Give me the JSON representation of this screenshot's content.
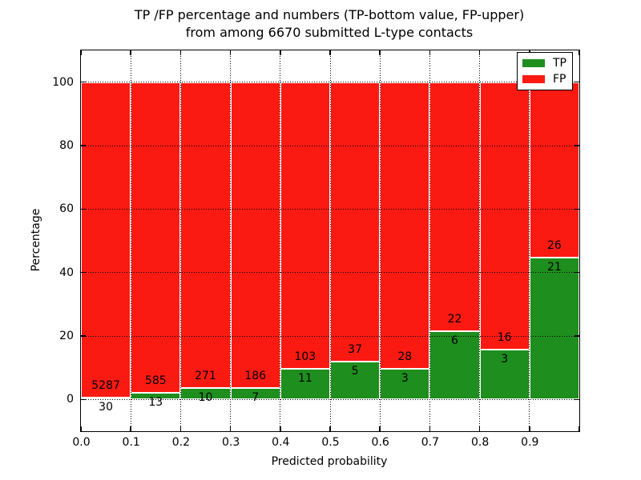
{
  "figure": {
    "title_line1": "TP /FP percentage and numbers (TP-bottom value, FP-upper)",
    "title_line2": "from among 6670 submitted L-type contacts"
  },
  "chart_data": {
    "type": "bar",
    "subtype": "stacked-percentage-histogram",
    "title": "TP /FP percentage and numbers (TP-bottom value, FP-upper) from among 6670 submitted L-type contacts",
    "xlabel": "Predicted probability",
    "ylabel": "Percentage",
    "xlim": [
      0.0,
      1.0
    ],
    "ylim": [
      -10,
      110
    ],
    "grid": "dotted",
    "x_tick_values": [
      0.0,
      0.1,
      0.2,
      0.3,
      0.4,
      0.5,
      0.6,
      0.7,
      0.8,
      0.9,
      1.0
    ],
    "x_tick_labels": [
      "0.0",
      "0.1",
      "0.2",
      "0.3",
      "0.4",
      "0.5",
      "0.6",
      "0.7",
      "0.8",
      "0.9",
      ""
    ],
    "y_tick_values": [
      0,
      20,
      40,
      60,
      80,
      100
    ],
    "y_tick_labels": [
      "0",
      "20",
      "40",
      "60",
      "80",
      "100"
    ],
    "categories": [
      "0.0-0.1",
      "0.1-0.2",
      "0.2-0.3",
      "0.3-0.4",
      "0.4-0.5",
      "0.5-0.6",
      "0.6-0.7",
      "0.7-0.8",
      "0.8-0.9",
      "0.9-1.0"
    ],
    "series": [
      {
        "name": "TP",
        "color": "#1e8e1e",
        "counts": [
          30,
          13,
          10,
          7,
          11,
          5,
          3,
          6,
          3,
          21
        ]
      },
      {
        "name": "FP",
        "color": "#fb1a12",
        "counts": [
          5287,
          585,
          271,
          186,
          103,
          37,
          28,
          22,
          16,
          26
        ]
      }
    ],
    "tp_percent_per_bin": [
      0.56,
      2.17,
      3.56,
      3.63,
      9.65,
      11.9,
      9.68,
      21.43,
      15.79,
      44.68
    ],
    "total_contacts": 6670,
    "legend": {
      "position": "upper right",
      "entries": [
        {
          "label": "TP",
          "color": "#1e8e1e"
        },
        {
          "label": "FP",
          "color": "#fb1a12"
        }
      ]
    }
  }
}
